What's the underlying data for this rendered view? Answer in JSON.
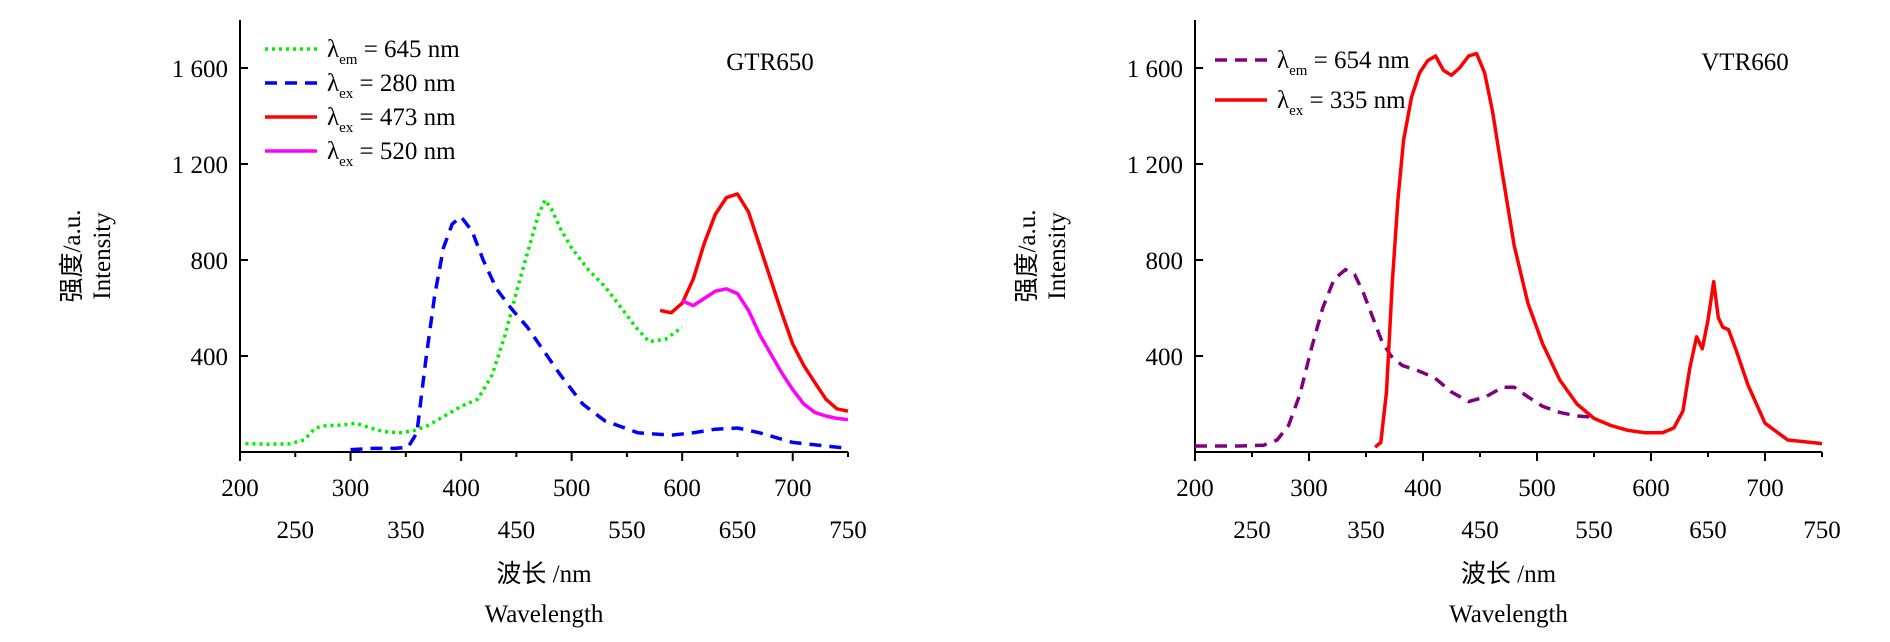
{
  "chart_data": [
    {
      "type": "line",
      "title": "GTR650",
      "xlabel_cn": "波长 /nm",
      "xlabel_en": "Wavelength",
      "ylabel_cn": "强度/a.u.",
      "ylabel_en": "Intensity",
      "xlim": [
        200,
        750
      ],
      "ylim": [
        0,
        1800
      ],
      "x_ticks_upper": [
        "200",
        "300",
        "400",
        "500",
        "600",
        "700"
      ],
      "x_ticks_lower": [
        "250",
        "350",
        "450",
        "550",
        "650",
        "750"
      ],
      "y_ticks": [
        "400",
        "800",
        "1 200",
        "1 600"
      ],
      "legend_position": "top-left",
      "series": [
        {
          "name": "λem = 645 nm",
          "legend_symbol": "λ",
          "legend_sub": "em",
          "legend_rest": " = 645 nm",
          "color": "#00ee00",
          "dash": "3,4",
          "x": [
            205,
            225,
            245,
            258,
            268,
            278,
            292,
            305,
            318,
            330,
            345,
            358,
            370,
            385,
            400,
            415,
            428,
            440,
            452,
            462,
            470,
            476,
            482,
            490,
            500,
            515,
            530,
            545,
            558,
            570,
            585,
            600
          ],
          "y": [
            35,
            32,
            34,
            50,
            100,
            110,
            112,
            120,
            100,
            85,
            80,
            90,
            110,
            150,
            190,
            220,
            320,
            490,
            700,
            860,
            990,
            1050,
            1010,
            930,
            850,
            760,
            690,
            600,
            520,
            460,
            470,
            520
          ]
        },
        {
          "name": "λex = 280 nm",
          "legend_symbol": "λ",
          "legend_sub": "ex",
          "legend_rest": " = 280 nm",
          "color": "#0000ff",
          "dash": "12,8",
          "x": [
            300,
            320,
            340,
            352,
            360,
            368,
            376,
            384,
            392,
            400,
            410,
            420,
            432,
            445,
            460,
            475,
            490,
            510,
            530,
            560,
            590,
            610,
            630,
            650,
            670,
            700,
            750
          ],
          "y": [
            10,
            15,
            15,
            20,
            80,
            380,
            650,
            850,
            950,
            980,
            920,
            800,
            680,
            600,
            520,
            420,
            320,
            200,
            130,
            80,
            70,
            80,
            95,
            100,
            80,
            40,
            15
          ]
        },
        {
          "name": "λex = 473 nm",
          "legend_symbol": "λ",
          "legend_sub": "ex",
          "legend_rest": " = 473 nm",
          "color": "#ff0000",
          "dash": "",
          "x": [
            580,
            590,
            600,
            610,
            620,
            630,
            640,
            650,
            660,
            670,
            680,
            690,
            700,
            710,
            720,
            730,
            740,
            750
          ],
          "y": [
            590,
            580,
            620,
            720,
            870,
            990,
            1060,
            1075,
            1000,
            860,
            720,
            580,
            450,
            360,
            290,
            220,
            180,
            170
          ]
        },
        {
          "name": "λex = 520 nm",
          "legend_symbol": "λ",
          "legend_sub": "ex",
          "legend_rest": " = 520 nm",
          "color": "#ff00ff",
          "dash": "",
          "x": [
            600,
            610,
            620,
            630,
            640,
            650,
            660,
            670,
            680,
            690,
            700,
            710,
            720,
            730,
            740,
            750
          ],
          "y": [
            630,
            610,
            640,
            670,
            680,
            660,
            590,
            490,
            410,
            330,
            260,
            200,
            165,
            150,
            140,
            135
          ]
        }
      ]
    },
    {
      "type": "line",
      "title": "VTR660",
      "xlabel_cn": "波长 /nm",
      "xlabel_en": "Wavelength",
      "ylabel_cn": "强度/a.u.",
      "ylabel_en": "Intensity",
      "xlim": [
        200,
        750
      ],
      "ylim": [
        0,
        1800
      ],
      "x_ticks_upper": [
        "200",
        "300",
        "400",
        "500",
        "600",
        "700"
      ],
      "x_ticks_lower": [
        "250",
        "350",
        "450",
        "550",
        "650",
        "750"
      ],
      "y_ticks": [
        "400",
        "800",
        "1 200",
        "1 600"
      ],
      "legend_position": "top-left",
      "series": [
        {
          "name": "λem = 654 nm",
          "legend_symbol": "λ",
          "legend_sub": "em",
          "legend_rest": " = 654 nm",
          "color": "#800080",
          "dash": "12,8",
          "x": [
            200,
            220,
            240,
            260,
            272,
            282,
            292,
            302,
            312,
            322,
            332,
            340,
            348,
            356,
            364,
            372,
            382,
            395,
            410,
            425,
            440,
            455,
            470,
            480,
            492,
            505,
            520,
            535,
            550
          ],
          "y": [
            25,
            25,
            25,
            28,
            50,
            110,
            240,
            430,
            600,
            720,
            760,
            740,
            660,
            560,
            460,
            400,
            360,
            340,
            310,
            250,
            210,
            230,
            270,
            270,
            230,
            190,
            165,
            150,
            145
          ]
        },
        {
          "name": "λex = 335 nm",
          "legend_symbol": "λ",
          "legend_sub": "ex",
          "legend_rest": " = 335 nm",
          "color": "#ff0000",
          "dash": "",
          "x": [
            358,
            363,
            368,
            373,
            378,
            383,
            390,
            397,
            404,
            411,
            418,
            425,
            432,
            440,
            447,
            454,
            461,
            470,
            480,
            492,
            505,
            520,
            535,
            550,
            565,
            580,
            595,
            610,
            620,
            628,
            634,
            640,
            645,
            650,
            655,
            659,
            663,
            668,
            675,
            685,
            700,
            720,
            740,
            750
          ],
          "y": [
            20,
            40,
            250,
            700,
            1050,
            1300,
            1480,
            1580,
            1630,
            1650,
            1590,
            1570,
            1600,
            1650,
            1660,
            1580,
            1420,
            1150,
            860,
            620,
            450,
            300,
            200,
            140,
            110,
            90,
            80,
            80,
            100,
            170,
            350,
            480,
            430,
            550,
            710,
            560,
            520,
            510,
            420,
            280,
            120,
            50,
            40,
            35
          ]
        }
      ]
    }
  ]
}
